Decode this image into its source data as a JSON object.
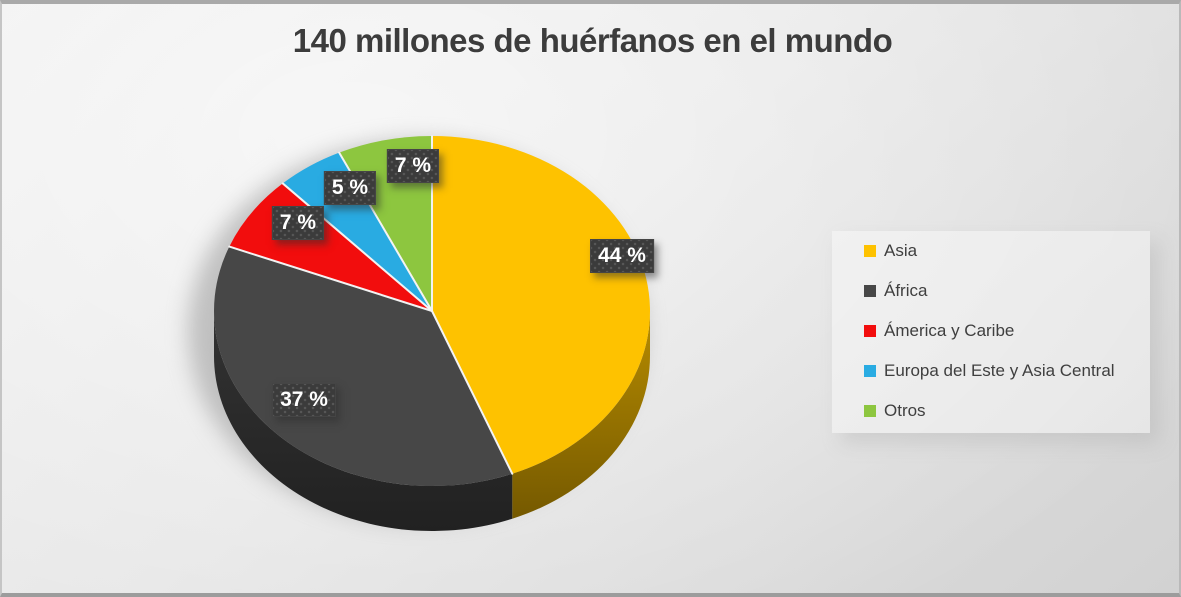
{
  "chart_data": {
    "type": "pie",
    "style": "3d",
    "title": "140 millones de huérfanos en el mundo",
    "unit": "%",
    "direction": "clockwise",
    "start_angle_deg": 0,
    "legend_position": "right",
    "grid": false,
    "series": [
      {
        "name": "Asia",
        "value": 44,
        "display": "44 %",
        "color": "#FEC200",
        "label_x": 620,
        "label_y": 252
      },
      {
        "name": "África",
        "value": 37,
        "display": "37 %",
        "color": "#474747",
        "label_x": 302,
        "label_y": 396
      },
      {
        "name": "Ámerica y Caribe",
        "value": 7,
        "display": "7 %",
        "color": "#F20D0D",
        "label_x": 296,
        "label_y": 219
      },
      {
        "name": "Europa del Este y Asia Central",
        "value": 5,
        "display": "5 %",
        "color": "#29ABE2",
        "label_x": 348,
        "label_y": 184
      },
      {
        "name": "Otros",
        "value": 7,
        "display": "7 %",
        "color": "#8DC63F",
        "label_x": 411,
        "label_y": 162
      }
    ]
  }
}
